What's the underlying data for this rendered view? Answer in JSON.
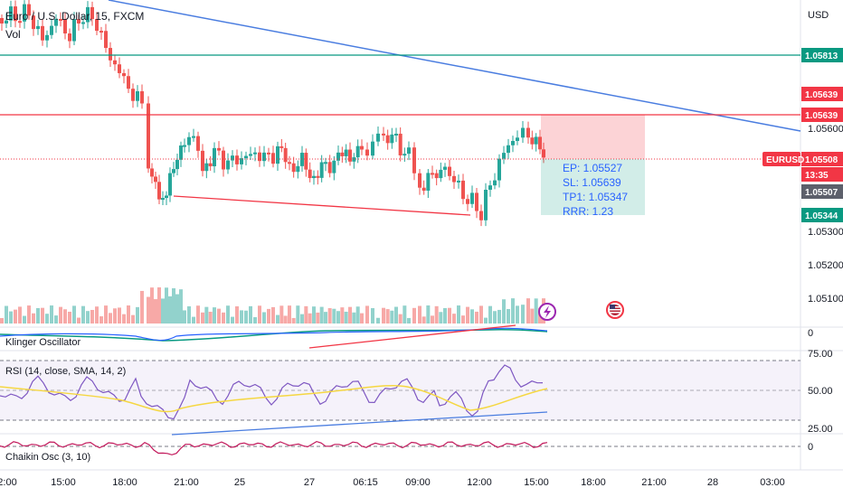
{
  "header": {
    "symbol_title": "Euro / U.S. Dollar, 15, FXCM",
    "volume_label": "Vol"
  },
  "price_axis": {
    "currency": "USD",
    "ticks": [
      "1.05600",
      "1.05300",
      "1.05200",
      "1.05100"
    ],
    "tags": [
      {
        "text": "1.05813",
        "color": "#089981"
      },
      {
        "text": "1.05639",
        "color": "#f23645"
      },
      {
        "text": "1.05639",
        "color": "#f23645"
      },
      {
        "text": "1.05508",
        "color": "#f23645"
      },
      {
        "text": "13:35",
        "color": "#f23645"
      },
      {
        "text": "1.05507",
        "color": "#5d606b"
      },
      {
        "text": "1.05344",
        "color": "#089981"
      }
    ],
    "symbol_tag": "EURUSD"
  },
  "position": {
    "entry": "EP: 1.05527",
    "stop": "SL: 1.05639",
    "target": "TP1: 1.05347",
    "ratio": "RRR: 1.23"
  },
  "panes": {
    "klinger": {
      "title": "Klinger Oscillator",
      "tick": "0"
    },
    "rsi": {
      "title": "RSI (14, close, SMA, 14, 2)",
      "ticks": [
        "75.00",
        "50.00",
        "25.00"
      ]
    },
    "chaikin": {
      "title": "Chaikin Osc (3, 10)",
      "tick": "0"
    }
  },
  "time_axis": [
    "2:00",
    "15:00",
    "18:00",
    "21:00",
    "25",
    "27",
    "06:15",
    "09:00",
    "12:00",
    "15:00",
    "18:00",
    "21:00",
    "28",
    "03:00"
  ],
  "colors": {
    "up": "#26a69a",
    "down": "#ef5350",
    "trend": "#4a7de0",
    "support": "#f23645",
    "rsi_line": "#7e57c2",
    "rsi_ma": "#f5d742"
  },
  "icons": [
    "lightning-icon",
    "us-flag-icon"
  ]
}
